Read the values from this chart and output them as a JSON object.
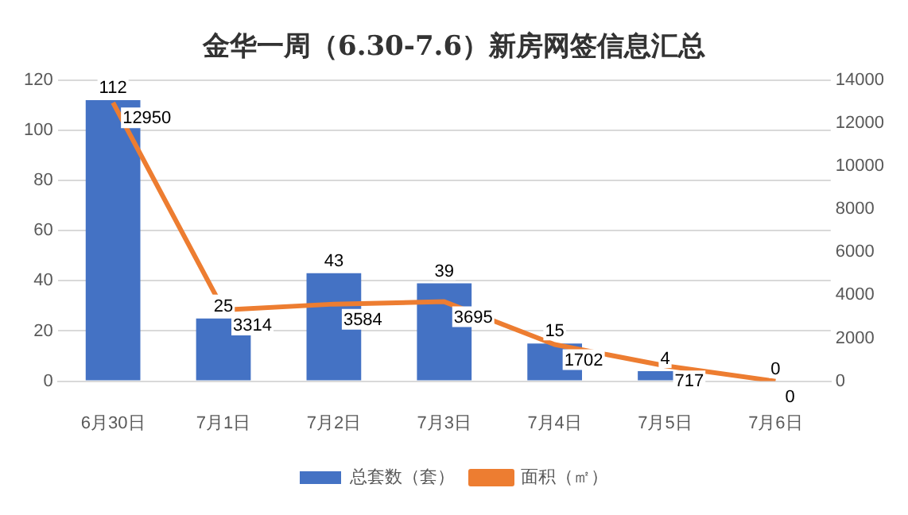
{
  "chart_data": {
    "type": "bar",
    "title": "金华一周（6.30-7.6）新房网签信息汇总",
    "categories": [
      "6月30日",
      "7月1日",
      "7月2日",
      "7月3日",
      "7月4日",
      "7月5日",
      "7月6日"
    ],
    "series": [
      {
        "name": "总套数（套）",
        "color": "#4472c4",
        "values": [
          112,
          25,
          43,
          39,
          15,
          4,
          0
        ]
      },
      {
        "name": "面积（㎡）",
        "type": "line",
        "axis": "y2",
        "color": "#ed7d31",
        "values": [
          12950,
          3314,
          3584,
          3695,
          1702,
          717,
          0
        ]
      }
    ],
    "ylim": [
      0,
      120
    ],
    "yticks": [
      0,
      20,
      40,
      60,
      80,
      100,
      120
    ],
    "y2lim": [
      0,
      14000
    ],
    "y2ticks": [
      0,
      2000,
      4000,
      6000,
      8000,
      10000,
      12000,
      14000
    ],
    "grid": "y",
    "legend": "bottom",
    "data_labels": true,
    "marker": "none",
    "line_style": "solid"
  }
}
